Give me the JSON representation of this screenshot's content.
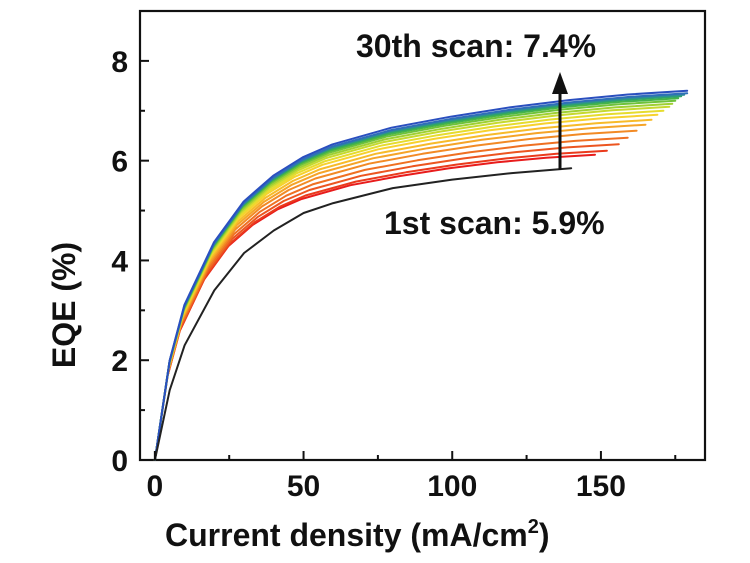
{
  "chart_data": {
    "type": "line",
    "xlabel": "Current density (mA/cm",
    "xlabel_superscript": "2",
    "xlabel_suffix": ")",
    "ylabel": "EQE (%)",
    "xlim": [
      -5,
      185
    ],
    "ylim": [
      0,
      9
    ],
    "x_ticks": [
      0,
      50,
      100,
      150
    ],
    "y_ticks": [
      0,
      2,
      4,
      6,
      8
    ],
    "grid": false,
    "annotations": {
      "top": "30th scan: 7.4%",
      "bottom": "1st scan: 5.9%"
    },
    "first_scan": {
      "color": "#222222",
      "points": [
        [
          0,
          0
        ],
        [
          5,
          1.4
        ],
        [
          10,
          2.3
        ],
        [
          20,
          3.4
        ],
        [
          30,
          4.15
        ],
        [
          40,
          4.6
        ],
        [
          50,
          4.95
        ],
        [
          60,
          5.15
        ],
        [
          80,
          5.45
        ],
        [
          100,
          5.62
        ],
        [
          120,
          5.75
        ],
        [
          140,
          5.85
        ]
      ]
    },
    "scan_series": {
      "colors": [
        "#e81c1c",
        "#ea3a1c",
        "#ec5520",
        "#ef7022",
        "#f28a25",
        "#f5a428",
        "#f7bb2a",
        "#f7d22e",
        "#e6dc2e",
        "#c6d92f",
        "#9fd033",
        "#6fc23a",
        "#45b448",
        "#2fa36a",
        "#2d8f95",
        "#2f6fb8",
        "#2a4fbf"
      ],
      "end_x": [
        148,
        152,
        156,
        159,
        162,
        165,
        167,
        169,
        171,
        173,
        174,
        175,
        176,
        177,
        178,
        179,
        179
      ],
      "end_y": [
        6.12,
        6.2,
        6.33,
        6.46,
        6.6,
        6.72,
        6.82,
        6.92,
        7.0,
        7.08,
        7.14,
        7.2,
        7.25,
        7.29,
        7.32,
        7.35,
        7.4
      ],
      "shape_x": [
        0,
        5,
        10,
        20,
        30,
        40,
        50,
        60,
        80,
        100,
        120,
        140,
        160,
        180
      ],
      "shape_ratio": [
        0,
        0.27,
        0.42,
        0.59,
        0.7,
        0.77,
        0.82,
        0.855,
        0.9,
        0.93,
        0.955,
        0.975,
        0.99,
        1.0
      ]
    }
  }
}
